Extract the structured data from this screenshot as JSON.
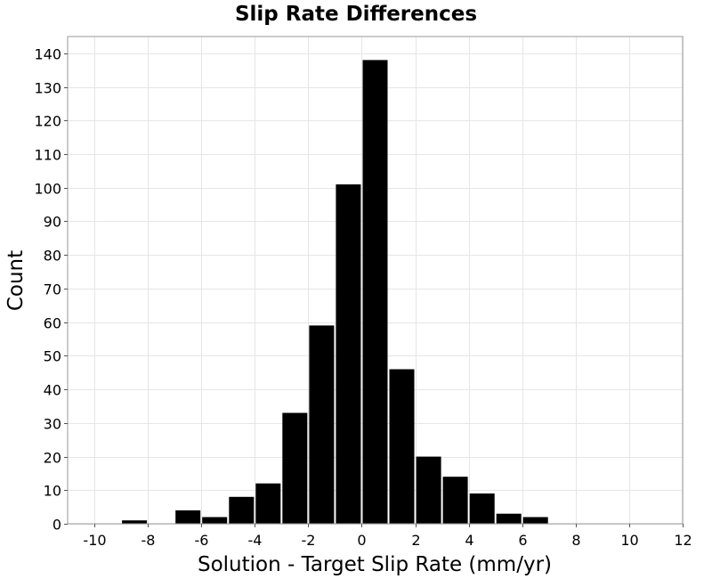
{
  "chart_data": {
    "type": "bar",
    "title": "Slip Rate Differences",
    "xlabel": "Solution - Target Slip Rate (mm/yr)",
    "ylabel": "Count",
    "xlim": [
      -11,
      12
    ],
    "ylim": [
      0,
      145
    ],
    "xticks": [
      -10,
      -8,
      -6,
      -4,
      -2,
      0,
      2,
      4,
      6,
      8,
      10,
      12
    ],
    "yticks": [
      0,
      10,
      20,
      30,
      40,
      50,
      60,
      70,
      80,
      90,
      100,
      110,
      120,
      130,
      140
    ],
    "grid": true,
    "bin_width": 1,
    "bins": [
      {
        "x0": -9,
        "x1": -8,
        "count": 1
      },
      {
        "x0": -7,
        "x1": -6,
        "count": 4
      },
      {
        "x0": -6,
        "x1": -5,
        "count": 2
      },
      {
        "x0": -5,
        "x1": -4,
        "count": 8
      },
      {
        "x0": -4,
        "x1": -3,
        "count": 12
      },
      {
        "x0": -3,
        "x1": -2,
        "count": 33
      },
      {
        "x0": -2,
        "x1": -1,
        "count": 59
      },
      {
        "x0": -1,
        "x1": 0,
        "count": 101
      },
      {
        "x0": 0,
        "x1": 1,
        "count": 138
      },
      {
        "x0": 1,
        "x1": 2,
        "count": 46
      },
      {
        "x0": 2,
        "x1": 3,
        "count": 20
      },
      {
        "x0": 3,
        "x1": 4,
        "count": 14
      },
      {
        "x0": 4,
        "x1": 5,
        "count": 9
      },
      {
        "x0": 5,
        "x1": 6,
        "count": 3
      },
      {
        "x0": 6,
        "x1": 7,
        "count": 2
      }
    ],
    "colors": {
      "bar": "#000000",
      "grid": "#e6e6e6",
      "frame": "#9a9a9a"
    }
  }
}
